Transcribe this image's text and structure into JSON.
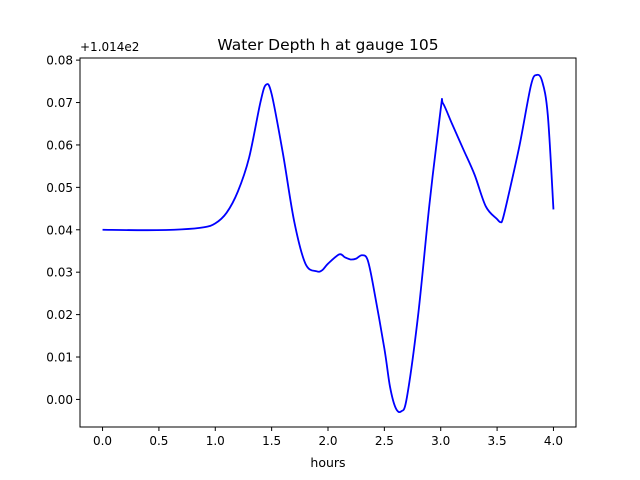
{
  "chart_data": {
    "type": "line",
    "title": "Water Depth h at gauge 105",
    "xlabel": "hours",
    "ylabel": "",
    "offset_label": "+1.014e2",
    "xlim": [
      -0.2,
      4.2
    ],
    "ylim": [
      -0.0065,
      0.0805
    ],
    "x_ticks": [
      0.0,
      0.5,
      1.0,
      1.5,
      2.0,
      2.5,
      3.0,
      3.5,
      4.0
    ],
    "x_tick_labels": [
      "0.0",
      "0.5",
      "1.0",
      "1.5",
      "2.0",
      "2.5",
      "3.0",
      "3.5",
      "4.0"
    ],
    "y_ticks": [
      0.0,
      0.01,
      0.02,
      0.03,
      0.04,
      0.05,
      0.06,
      0.07,
      0.08
    ],
    "y_tick_labels": [
      "0.00",
      "0.01",
      "0.02",
      "0.03",
      "0.04",
      "0.05",
      "0.06",
      "0.07",
      "0.08"
    ],
    "grid": false,
    "legend": "none",
    "series": [
      {
        "color": "#0000ff",
        "x": [
          0.0,
          0.4,
          0.7,
          0.9,
          1.0,
          1.1,
          1.2,
          1.3,
          1.4,
          1.45,
          1.5,
          1.6,
          1.7,
          1.8,
          1.9,
          1.95,
          2.0,
          2.1,
          2.15,
          2.2,
          2.25,
          2.3,
          2.35,
          2.4,
          2.5,
          2.55,
          2.6,
          2.65,
          2.7,
          2.8,
          2.9,
          3.0,
          3.02,
          3.1,
          3.2,
          3.3,
          3.4,
          3.5,
          3.53,
          3.55,
          3.6,
          3.7,
          3.8,
          3.85,
          3.9,
          3.95,
          4.0
        ],
        "y": [
          0.04,
          0.0399,
          0.0401,
          0.0406,
          0.0415,
          0.044,
          0.049,
          0.057,
          0.07,
          0.0742,
          0.072,
          0.058,
          0.042,
          0.032,
          0.0302,
          0.0305,
          0.032,
          0.0342,
          0.0335,
          0.033,
          0.0332,
          0.034,
          0.033,
          0.027,
          0.012,
          0.003,
          -0.002,
          -0.0028,
          0.0005,
          0.02,
          0.046,
          0.0685,
          0.0698,
          0.065,
          0.059,
          0.053,
          0.0455,
          0.0425,
          0.0418,
          0.0425,
          0.048,
          0.06,
          0.074,
          0.0765,
          0.075,
          0.067,
          0.0448
        ]
      }
    ]
  }
}
